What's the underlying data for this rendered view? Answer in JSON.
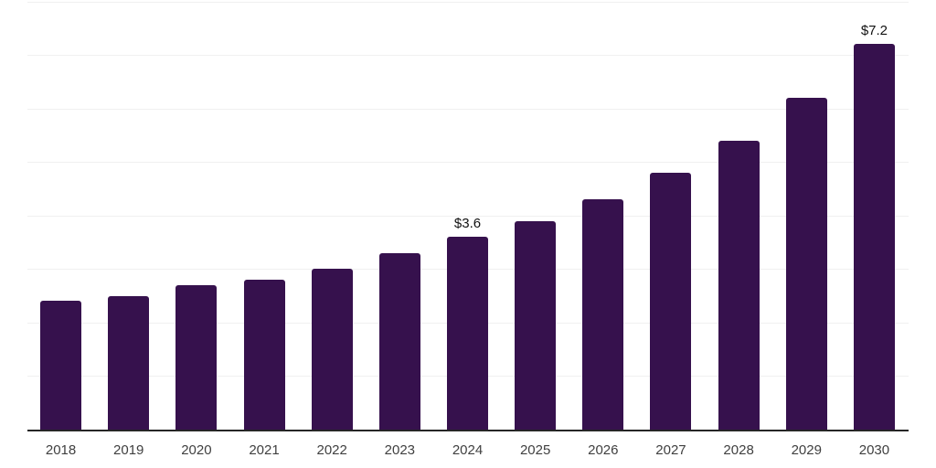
{
  "chart_data": {
    "type": "bar",
    "title": "",
    "xlabel": "",
    "ylabel": "",
    "categories": [
      "2018",
      "2019",
      "2020",
      "2021",
      "2022",
      "2023",
      "2024",
      "2025",
      "2026",
      "2027",
      "2028",
      "2029",
      "2030"
    ],
    "values": [
      2.4,
      2.5,
      2.7,
      2.8,
      3.0,
      3.3,
      3.6,
      3.9,
      4.3,
      4.8,
      5.4,
      6.2,
      7.2
    ],
    "value_labels": [
      {
        "category": "2024",
        "text": "$3.6"
      },
      {
        "category": "2030",
        "text": "$7.2"
      }
    ],
    "ylim": [
      0,
      8
    ],
    "gridline_interval": 1,
    "grid": "horizontal",
    "legend": "none",
    "colors": {
      "bar": "#36114d",
      "gridline": "#f0f0f0",
      "axis_line": "#262626",
      "tick_label": "#404040",
      "value_label": "#111111",
      "background": "#ffffff"
    }
  }
}
